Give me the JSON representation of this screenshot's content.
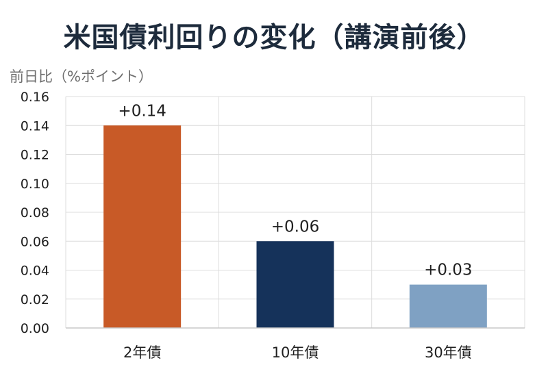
{
  "chart_data": {
    "type": "bar",
    "title": "米国債利回りの変化（講演前後）",
    "ylabel": "前日比（%ポイント）",
    "xlabel": "",
    "categories": [
      "2年債",
      "10年債",
      "30年債"
    ],
    "values": [
      0.14,
      0.06,
      0.03
    ],
    "data_labels": [
      "+0.14",
      "+0.06",
      "+0.03"
    ],
    "ylim": [
      0,
      0.16
    ],
    "yticks": [
      "0.00",
      "0.02",
      "0.04",
      "0.06",
      "0.08",
      "0.10",
      "0.12",
      "0.14",
      "0.16"
    ],
    "colors": [
      "#c85a27",
      "#15325a",
      "#7fa1c3"
    ],
    "grid": true,
    "legend": "none"
  }
}
